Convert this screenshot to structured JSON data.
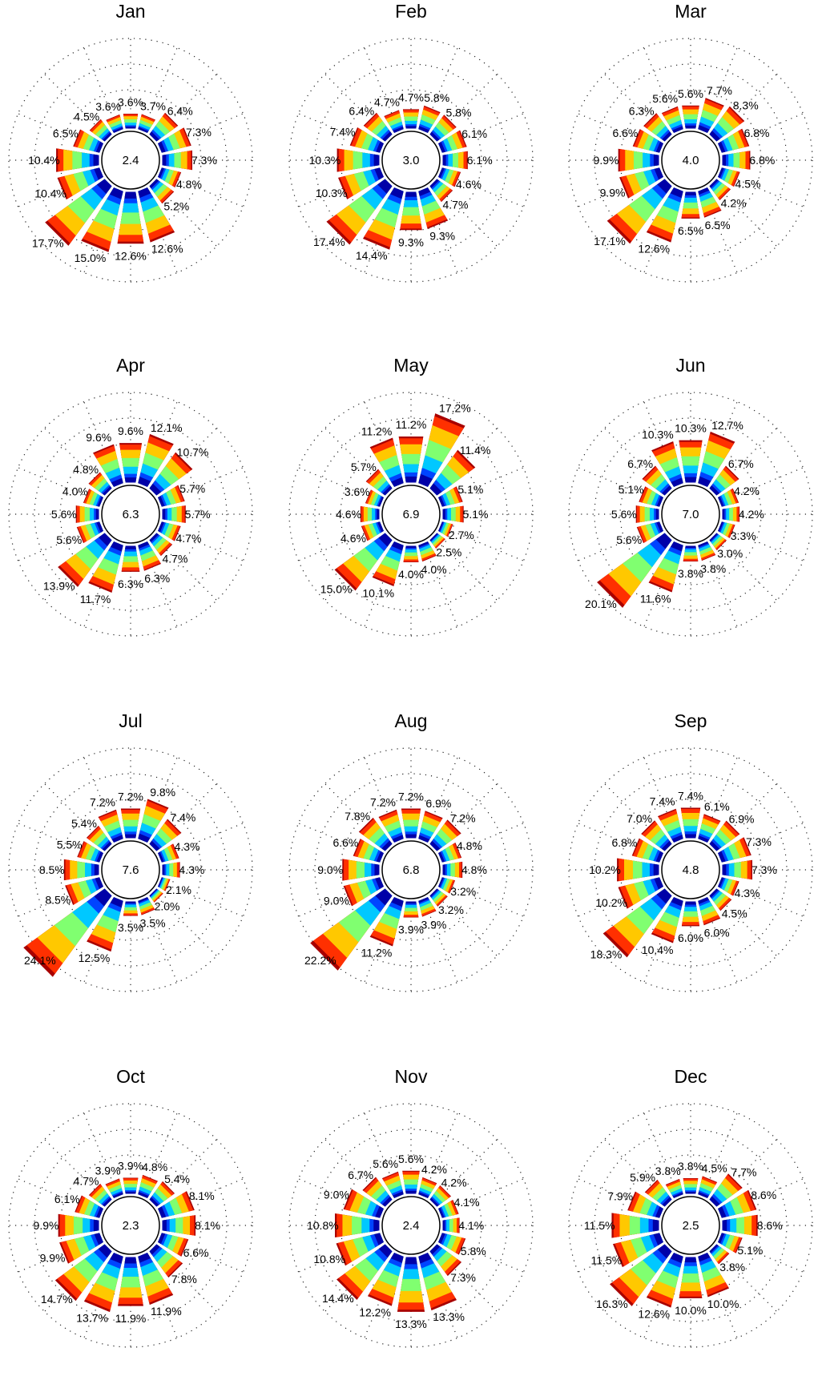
{
  "chart_data": {
    "type": "wind_rose",
    "directions": 16,
    "speed_class_colors": [
      "#0000a8",
      "#0044ff",
      "#00c8ff",
      "#80ff70",
      "#ffc800",
      "#ff3000",
      "#a80000"
    ],
    "grid": "dotted",
    "panels": [
      {
        "title": "Jan",
        "calm": "2.4",
        "labels": [
          "3.6%",
          "3.7%",
          "6.4%",
          "7.3%",
          "7.3%",
          "4.8%",
          "5.2%",
          "12.6%",
          "12.6%",
          "15.0%",
          "17.7%",
          "10.4%",
          "10.4%",
          "6.5%",
          "4.5%",
          "3.6%"
        ],
        "values": [
          3.6,
          3.7,
          6.4,
          7.3,
          7.3,
          4.8,
          5.2,
          12.6,
          12.6,
          15.0,
          17.7,
          10.4,
          10.4,
          6.5,
          4.5,
          3.6
        ]
      },
      {
        "title": "Feb",
        "calm": "3.0",
        "labels": [
          "4.7%",
          "5.8%",
          "5.8%",
          "6.1%",
          "6.1%",
          "4.6%",
          "4.7%",
          "9.3%",
          "9.3%",
          "14.4%",
          "17.4%",
          "10.3%",
          "10.3%",
          "7.4%",
          "6.4%",
          "4.7%"
        ],
        "values": [
          4.7,
          5.8,
          5.8,
          6.1,
          6.1,
          4.6,
          4.7,
          9.3,
          9.3,
          14.4,
          17.4,
          10.3,
          10.3,
          7.4,
          6.4,
          4.7
        ]
      },
      {
        "title": "Mar",
        "calm": "4.0",
        "labels": [
          "5.6%",
          "7.7%",
          "8.3%",
          "6.8%",
          "6.8%",
          "4.5%",
          "4.2%",
          "6.5%",
          "6.5%",
          "12.6%",
          "17.1%",
          "9.9%",
          "9.9%",
          "6.6%",
          "6.3%",
          "5.6%"
        ],
        "values": [
          5.6,
          7.7,
          8.3,
          6.8,
          6.8,
          4.5,
          4.2,
          6.5,
          6.5,
          12.6,
          17.1,
          9.9,
          9.9,
          6.6,
          6.3,
          5.6
        ]
      },
      {
        "title": "Apr",
        "calm": "6.3",
        "labels": [
          "9.6%",
          "12.1%",
          "10.7%",
          "5.7%",
          "5.7%",
          "4.7%",
          "4.7%",
          "6.3%",
          "6.3%",
          "11.7%",
          "13.9%",
          "5.6%",
          "5.6%",
          "4.0%",
          "4.8%",
          "9.6%"
        ],
        "values": [
          9.6,
          12.1,
          10.7,
          5.7,
          5.7,
          4.7,
          4.7,
          6.3,
          6.3,
          11.7,
          13.9,
          5.6,
          5.6,
          4.0,
          4.8,
          9.6
        ]
      },
      {
        "title": "May",
        "calm": "6.9",
        "labels": [
          "11.2%",
          "17.2%",
          "11.4%",
          "5.1%",
          "5.1%",
          "2.7%",
          "2.5%",
          "4.0%",
          "4.0%",
          "10.1%",
          "15.0%",
          "4.6%",
          "4.6%",
          "3.6%",
          "5.7%",
          "11.2%"
        ],
        "values": [
          11.2,
          17.2,
          11.4,
          5.1,
          5.1,
          2.7,
          2.5,
          4.0,
          4.0,
          10.1,
          15.0,
          4.6,
          4.6,
          3.6,
          5.7,
          11.2
        ]
      },
      {
        "title": "Jun",
        "calm": "7.0",
        "labels": [
          "10.3%",
          "12.7%",
          "6.7%",
          "4.2%",
          "4.2%",
          "3.3%",
          "3.0%",
          "3.8%",
          "3.8%",
          "11.6%",
          "20.1%",
          "5.6%",
          "5.6%",
          "5.1%",
          "6.7%",
          "10.3%"
        ],
        "values": [
          10.3,
          12.7,
          6.7,
          4.2,
          4.2,
          3.3,
          3.0,
          3.8,
          3.8,
          11.6,
          20.1,
          5.6,
          5.6,
          5.1,
          6.7,
          10.3
        ]
      },
      {
        "title": "Jul",
        "calm": "7.6",
        "labels": [
          "7.2%",
          "9.8%",
          "7.4%",
          "4.3%",
          "4.3%",
          "2.1%",
          "2.0%",
          "3.5%",
          "3.5%",
          "12.5%",
          "24.1%",
          "8.5%",
          "8.5%",
          "5.5%",
          "5.4%",
          "7.2%"
        ],
        "values": [
          7.2,
          9.8,
          7.4,
          4.3,
          4.3,
          2.1,
          2.0,
          3.5,
          3.5,
          12.5,
          24.1,
          8.5,
          8.5,
          5.5,
          5.4,
          7.2
        ]
      },
      {
        "title": "Aug",
        "calm": "6.8",
        "labels": [
          "7.2%",
          "6.9%",
          "7.2%",
          "4.8%",
          "4.8%",
          "3.2%",
          "3.2%",
          "3.9%",
          "3.9%",
          "11.2%",
          "22.2%",
          "9.0%",
          "9.0%",
          "6.6%",
          "7.8%",
          "7.2%"
        ],
        "values": [
          7.2,
          6.9,
          7.2,
          4.8,
          4.8,
          3.2,
          3.2,
          3.9,
          3.9,
          11.2,
          22.2,
          9.0,
          9.0,
          6.6,
          7.8,
          7.2
        ]
      },
      {
        "title": "Sep",
        "calm": "4.8",
        "labels": [
          "7.4%",
          "6.1%",
          "6.9%",
          "7.3%",
          "7.3%",
          "4.3%",
          "4.5%",
          "6.0%",
          "6.0%",
          "10.4%",
          "18.3%",
          "10.2%",
          "10.2%",
          "6.8%",
          "7.0%",
          "7.4%"
        ],
        "values": [
          7.4,
          6.1,
          6.9,
          7.3,
          7.3,
          4.3,
          4.5,
          6.0,
          6.0,
          10.4,
          18.3,
          10.2,
          10.2,
          6.8,
          7.0,
          7.4
        ]
      },
      {
        "title": "Oct",
        "calm": "2.3",
        "labels": [
          "3.9%",
          "4.8%",
          "5.4%",
          "8.1%",
          "8.1%",
          "6.6%",
          "7.8%",
          "11.9%",
          "11.9%",
          "13.7%",
          "14.7%",
          "9.9%",
          "9.9%",
          "6.1%",
          "4.7%",
          "3.9%"
        ],
        "values": [
          3.9,
          4.8,
          5.4,
          8.1,
          8.1,
          6.6,
          7.8,
          11.9,
          11.9,
          13.7,
          14.7,
          9.9,
          9.9,
          6.1,
          4.7,
          3.9
        ]
      },
      {
        "title": "Nov",
        "calm": "2.4",
        "labels": [
          "5.6%",
          "4.2%",
          "4.2%",
          "4.1%",
          "4.1%",
          "5.8%",
          "7.3%",
          "13.3%",
          "13.3%",
          "12.2%",
          "14.4%",
          "10.8%",
          "10.8%",
          "9.0%",
          "6.7%",
          "5.6%"
        ],
        "values": [
          5.6,
          4.2,
          4.2,
          4.1,
          4.1,
          5.8,
          7.3,
          13.3,
          13.3,
          12.2,
          14.4,
          10.8,
          10.8,
          9.0,
          6.7,
          5.6
        ]
      },
      {
        "title": "Dec",
        "calm": "2.5",
        "labels": [
          "3.8%",
          "4.5%",
          "7.7%",
          "8.6%",
          "8.6%",
          "5.1%",
          "3.8%",
          "10.0%",
          "10.0%",
          "12.6%",
          "16.3%",
          "11.5%",
          "11.5%",
          "7.9%",
          "5.9%",
          "3.8%"
        ],
        "values": [
          3.8,
          4.5,
          7.7,
          8.6,
          8.6,
          5.1,
          3.8,
          10.0,
          10.0,
          12.6,
          16.3,
          11.5,
          11.5,
          7.9,
          5.9,
          3.8
        ]
      }
    ]
  }
}
